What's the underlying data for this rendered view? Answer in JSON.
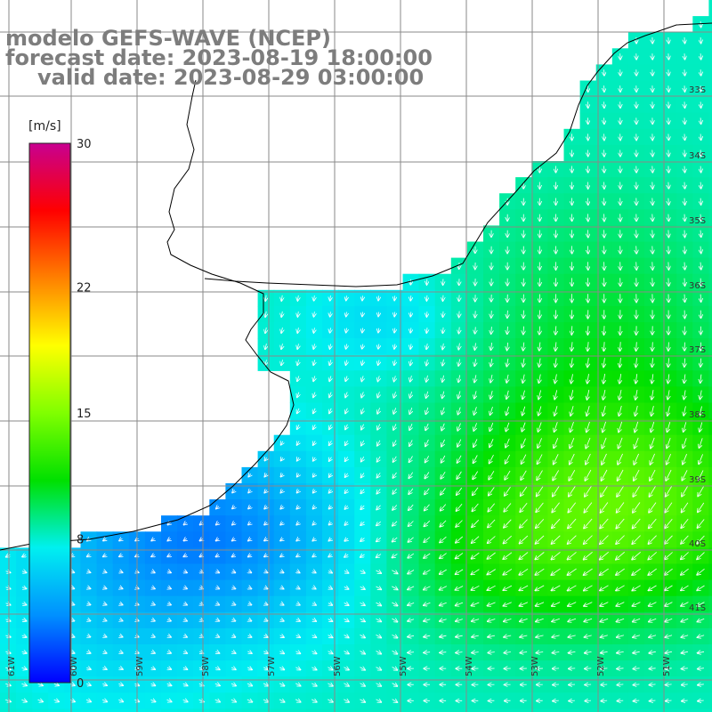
{
  "map": {
    "title_model": "modelo GEFS-WAVE (NCEP)",
    "forecast_date": "forecast date: 2023-08-19 18:00:00",
    "valid_date": "valid date: 2023-08-29 03:00:00",
    "variable": "wind speed and direction",
    "colorbar": {
      "unit": "[m/s]",
      "min": 0,
      "max": 30,
      "tick_labels": [
        "30",
        "22",
        "15",
        "8",
        "0"
      ],
      "tick_values": [
        30,
        22,
        15,
        8,
        0
      ],
      "colors": [
        "#0000ff",
        "#0090ff",
        "#00f0f0",
        "#00e000",
        "#80ff00",
        "#ffff00",
        "#ff8000",
        "#ff0000",
        "#c80090"
      ]
    },
    "longitude_labels": [
      "61W",
      "60W",
      "59W",
      "58W",
      "57W",
      "56W",
      "55W",
      "54W",
      "53W",
      "52W",
      "51W"
    ],
    "latitude_labels": [
      "33S",
      "34S",
      "35S",
      "36S",
      "37S",
      "38S",
      "39S",
      "40S",
      "41S"
    ],
    "land_color": "#ffffff",
    "grid_color": "#8a8a8a"
  }
}
